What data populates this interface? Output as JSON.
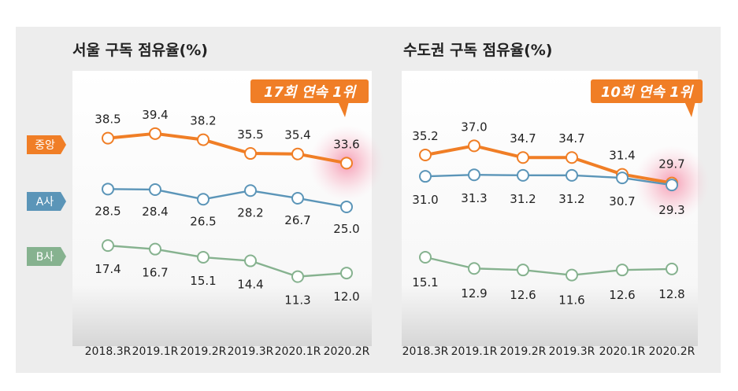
{
  "chart_data": [
    {
      "type": "line",
      "title": "서울 구독 점유율(%)",
      "badge": "17회 연속 1위",
      "categories": [
        "2018.3R",
        "2019.1R",
        "2019.2R",
        "2019.3R",
        "2020.1R",
        "2020.2R"
      ],
      "series": [
        {
          "name": "중앙",
          "color": "#f07e26",
          "values": [
            38.5,
            39.4,
            38.2,
            35.5,
            35.4,
            33.6
          ],
          "labels": [
            "38.5",
            "39.4",
            "38.2",
            "35.5",
            "35.4",
            "33.6"
          ]
        },
        {
          "name": "A사",
          "color": "#5b95b8",
          "values": [
            28.5,
            28.4,
            26.5,
            28.2,
            26.7,
            25.0
          ],
          "labels": [
            "28.5",
            "28.4",
            "26.5",
            "28.2",
            "26.7",
            "25.0"
          ]
        },
        {
          "name": "B사",
          "color": "#86b28f",
          "values": [
            17.4,
            16.7,
            15.1,
            14.4,
            11.3,
            12.0
          ],
          "labels": [
            "17.4",
            "16.7",
            "15.1",
            "14.4",
            "11.3",
            "12.0"
          ]
        }
      ]
    },
    {
      "type": "line",
      "title": "수도권 구독 점유율(%)",
      "badge": "10회 연속 1위",
      "categories": [
        "2018.3R",
        "2019.1R",
        "2019.2R",
        "2019.3R",
        "2020.1R",
        "2020.2R"
      ],
      "series": [
        {
          "name": "중앙",
          "color": "#f07e26",
          "values": [
            35.2,
            37.0,
            34.7,
            34.7,
            31.4,
            29.7
          ],
          "labels": [
            "35.2",
            "37.0",
            "34.7",
            "34.7",
            "31.4",
            "29.7"
          ]
        },
        {
          "name": "A사",
          "color": "#5b95b8",
          "values": [
            31.0,
            31.3,
            31.2,
            31.2,
            30.7,
            29.3
          ],
          "labels": [
            "31.0",
            "31.3",
            "31.2",
            "31.2",
            "30.7",
            "29.3"
          ]
        },
        {
          "name": "B사",
          "color": "#86b28f",
          "values": [
            15.1,
            12.9,
            12.6,
            11.6,
            12.6,
            12.8
          ],
          "labels": [
            "15.1",
            "12.9",
            "12.6",
            "11.6",
            "12.6",
            "12.8"
          ]
        }
      ]
    }
  ]
}
